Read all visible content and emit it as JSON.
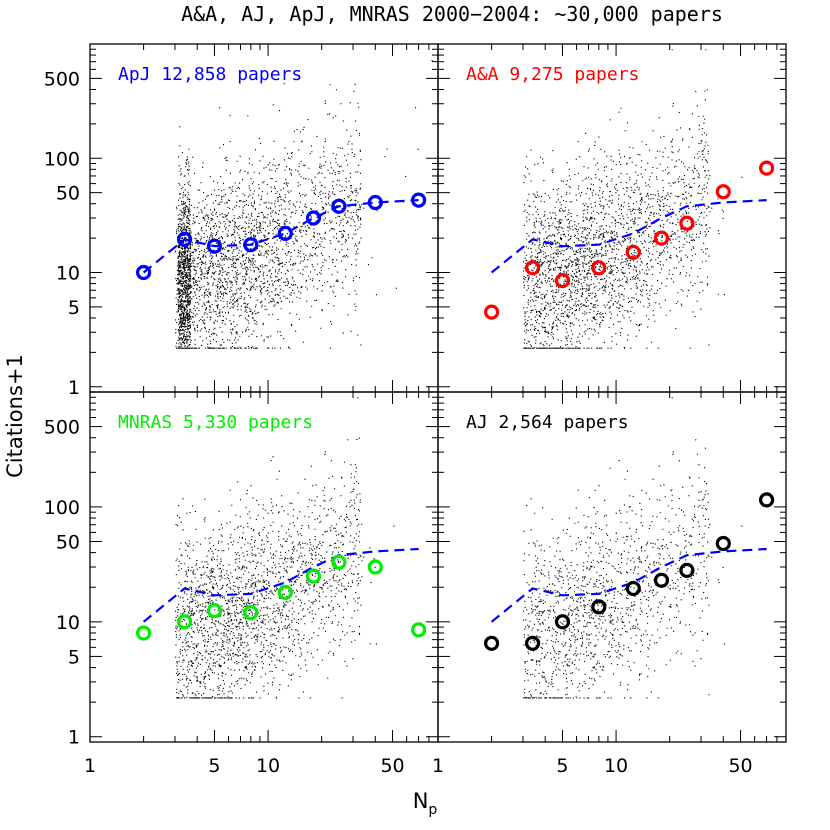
{
  "chart_data": {
    "type": "scatter",
    "title": "A&A, AJ, ApJ, MNRAS 2000−2004: ~30,000 papers",
    "xlabel": "N",
    "xlabel_sub": "p",
    "ylabel": "Citations+1",
    "xscale": "log",
    "yscale": "log",
    "xlim": [
      1,
      90
    ],
    "ylim": [
      0.9,
      1000
    ],
    "x_ticks": [
      1,
      5,
      10,
      50
    ],
    "x_tick_labels": [
      "1",
      "5",
      "10",
      "50"
    ],
    "y_ticks": [
      1,
      5,
      10,
      50,
      100,
      500
    ],
    "y_tick_labels": [
      "1",
      "5",
      "10",
      "50",
      "100",
      "500"
    ],
    "reference_curve": {
      "style": "dashed",
      "color": "#0000ff",
      "x": [
        2,
        3.4,
        5,
        8,
        12.5,
        18,
        25,
        40,
        70
      ],
      "y": [
        10,
        19.5,
        17,
        17.5,
        22,
        30,
        38,
        41,
        43
      ]
    },
    "panels": [
      {
        "label": "ApJ 12,858 papers",
        "color": "#0000ff",
        "show_ylabels": true,
        "show_xlabels": false,
        "x": [
          2,
          3.4,
          5,
          8,
          12.5,
          18,
          25,
          40,
          70
        ],
        "y": [
          10,
          19.5,
          17,
          17.5,
          22,
          30,
          38,
          41,
          43
        ],
        "scatter_count": 4200,
        "dot_color": "#000000"
      },
      {
        "label": "A&A 9,275 papers",
        "color": "#ff0000",
        "show_ylabels": false,
        "show_xlabels": false,
        "x": [
          2,
          3.4,
          5,
          8,
          12.5,
          18,
          25,
          40,
          70
        ],
        "y": [
          4.5,
          11,
          8.5,
          11,
          15,
          20,
          27,
          51,
          82
        ],
        "scatter_count": 3200,
        "dot_color": "#000000"
      },
      {
        "label": "MNRAS 5,330 papers",
        "color": "#00ee00",
        "show_ylabels": true,
        "show_xlabels": true,
        "x": [
          2,
          3.4,
          5,
          8,
          12.5,
          18,
          25,
          40,
          70
        ],
        "y": [
          8,
          10,
          12.5,
          12,
          18,
          25,
          33,
          30,
          8.5
        ],
        "scatter_count": 2200,
        "dot_color": "#000000"
      },
      {
        "label": "AJ 2,564 papers",
        "color": "#000000",
        "show_ylabels": false,
        "show_xlabels": true,
        "x": [
          2,
          3.4,
          5,
          8,
          12.5,
          18,
          25,
          40,
          70
        ],
        "y": [
          6.5,
          6.5,
          10,
          13.5,
          19.5,
          23,
          28,
          48,
          115
        ],
        "scatter_count": 1400,
        "dot_color": "#000000"
      }
    ],
    "grid": false,
    "legend": "none"
  }
}
